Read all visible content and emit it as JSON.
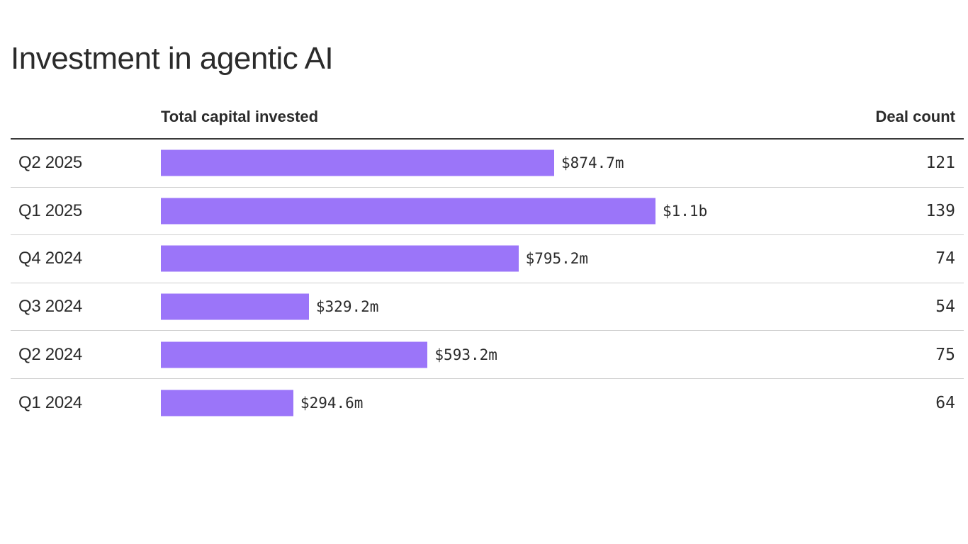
{
  "title": "Investment in agentic AI",
  "columns": {
    "capital": "Total capital invested",
    "deals": "Deal count"
  },
  "colors": {
    "bar": "#9b75f9",
    "text": "#2b2b2b",
    "rule": "#3a3a3a",
    "divider": "#cfcfcf"
  },
  "chart_data": {
    "type": "bar",
    "orientation": "horizontal",
    "title": "Investment in agentic AI",
    "categories": [
      "Q2 2025",
      "Q1 2025",
      "Q4 2024",
      "Q3 2024",
      "Q2 2024",
      "Q1 2024"
    ],
    "series": [
      {
        "name": "Total capital invested",
        "unit": "$m",
        "values": [
          874.7,
          1100,
          795.2,
          329.2,
          593.2,
          294.6
        ],
        "labels": [
          "$874.7m",
          "$1.1b",
          "$795.2m",
          "$329.2m",
          "$593.2m",
          "$294.6m"
        ]
      },
      {
        "name": "Deal count",
        "values": [
          121,
          139,
          74,
          54,
          75,
          64
        ]
      }
    ],
    "xlim": [
      0,
      1100
    ],
    "grid": false,
    "legend": "none"
  }
}
